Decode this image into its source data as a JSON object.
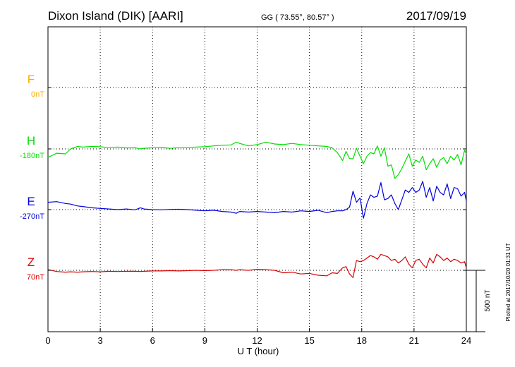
{
  "header": {
    "station": "Dixon Island (DIK)  [AARI]",
    "coords": "GG ( 73.55°,  80.57° )",
    "date": "2017/09/19"
  },
  "side_note": "Plotted at 2017/10/20 01:31  UT",
  "scale_label": "500 nT",
  "chart_data": {
    "type": "line",
    "xlabel": "U T (hour)",
    "xlim": [
      0,
      24
    ],
    "x_ticks": [
      0,
      3,
      6,
      9,
      12,
      15,
      18,
      21,
      24
    ],
    "scale_bar_nT": 500,
    "grid": true,
    "series": [
      {
        "name": "F",
        "baseline_label": "0nT",
        "color": "#ffaa00",
        "x": [],
        "values": []
      },
      {
        "name": "H",
        "baseline_label": "-180nT",
        "color": "#00e000",
        "x": [
          0,
          0.5,
          1.0,
          1.3,
          1.7,
          2.0,
          2.5,
          3.0,
          3.5,
          4.0,
          4.5,
          5.0,
          5.3,
          5.5,
          6.0,
          6.5,
          7.0,
          7.5,
          8.0,
          8.5,
          9.0,
          9.5,
          10.0,
          10.5,
          10.8,
          11.0,
          11.5,
          12.0,
          12.5,
          13.0,
          13.5,
          14.0,
          14.5,
          15.0,
          15.5,
          16.0,
          16.3,
          16.6,
          16.9,
          17.1,
          17.3,
          17.5,
          17.7,
          17.9,
          18.1,
          18.3,
          18.5,
          18.7,
          18.9,
          19.1,
          19.3,
          19.5,
          19.7,
          19.9,
          20.1,
          20.3,
          20.5,
          20.7,
          20.9,
          21.1,
          21.3,
          21.5,
          21.7,
          21.9,
          22.1,
          22.3,
          22.5,
          22.7,
          22.9,
          23.1,
          23.3,
          23.5,
          23.7,
          23.9,
          24.0
        ],
        "values": [
          -70,
          -35,
          -40,
          0,
          20,
          15,
          20,
          18,
          10,
          15,
          8,
          10,
          0,
          5,
          10,
          12,
          5,
          10,
          10,
          15,
          18,
          25,
          30,
          32,
          55,
          45,
          25,
          35,
          55,
          40,
          35,
          45,
          35,
          30,
          25,
          20,
          10,
          -30,
          -95,
          -20,
          -80,
          -80,
          5,
          -60,
          -120,
          -60,
          -30,
          -40,
          25,
          -60,
          10,
          -140,
          -130,
          -240,
          -210,
          -160,
          -100,
          -40,
          -140,
          -90,
          -110,
          -60,
          -170,
          -120,
          -80,
          -150,
          -90,
          -70,
          -120,
          -60,
          -90,
          -45,
          -130,
          -10,
          -40
        ]
      },
      {
        "name": "E",
        "baseline_label": "-270nT",
        "color": "#0000dd",
        "x": [
          0,
          0.5,
          1.0,
          1.3,
          1.7,
          2.0,
          2.5,
          3.0,
          3.5,
          4.0,
          4.5,
          5.0,
          5.3,
          5.5,
          6.0,
          6.5,
          7.0,
          7.5,
          8.0,
          8.5,
          9.0,
          9.5,
          10.0,
          10.5,
          10.8,
          11.0,
          11.5,
          12.0,
          12.5,
          13.0,
          13.5,
          14.0,
          14.5,
          15.0,
          15.5,
          16.0,
          16.3,
          16.6,
          16.9,
          17.1,
          17.3,
          17.5,
          17.7,
          17.9,
          18.1,
          18.3,
          18.5,
          18.7,
          18.9,
          19.1,
          19.3,
          19.5,
          19.7,
          19.9,
          20.1,
          20.3,
          20.5,
          20.7,
          20.9,
          21.1,
          21.3,
          21.5,
          21.7,
          21.9,
          22.1,
          22.3,
          22.5,
          22.7,
          22.9,
          23.1,
          23.3,
          23.5,
          23.7,
          23.9,
          24.0
        ],
        "values": [
          60,
          65,
          50,
          45,
          30,
          25,
          15,
          10,
          5,
          0,
          5,
          -2,
          15,
          5,
          0,
          -2,
          2,
          3,
          0,
          -5,
          -10,
          -5,
          -15,
          -20,
          -30,
          -15,
          -20,
          -15,
          -20,
          -25,
          -15,
          -20,
          -10,
          -15,
          -5,
          -25,
          -15,
          -10,
          -10,
          0,
          20,
          150,
          60,
          95,
          -70,
          50,
          120,
          100,
          110,
          220,
          80,
          90,
          120,
          50,
          0,
          80,
          160,
          140,
          180,
          140,
          160,
          230,
          100,
          180,
          70,
          190,
          140,
          120,
          210,
          90,
          180,
          170,
          110,
          140,
          70
        ]
      },
      {
        "name": "Z",
        "baseline_label": "70nT",
        "color": "#dd0000",
        "x": [
          0,
          0.5,
          1.0,
          1.3,
          1.7,
          2.0,
          2.5,
          3.0,
          3.5,
          4.0,
          4.5,
          5.0,
          5.3,
          5.5,
          6.0,
          6.5,
          7.0,
          7.5,
          8.0,
          8.5,
          9.0,
          9.5,
          10.0,
          10.5,
          10.8,
          11.0,
          11.5,
          12.0,
          12.5,
          13.0,
          13.5,
          14.0,
          14.5,
          15.0,
          15.5,
          16.0,
          16.3,
          16.6,
          16.9,
          17.1,
          17.3,
          17.5,
          17.7,
          17.9,
          18.1,
          18.3,
          18.5,
          18.7,
          18.9,
          19.1,
          19.3,
          19.5,
          19.7,
          19.9,
          20.1,
          20.3,
          20.5,
          20.7,
          20.9,
          21.1,
          21.3,
          21.5,
          21.7,
          21.9,
          22.1,
          22.3,
          22.5,
          22.7,
          22.9,
          23.1,
          23.3,
          23.5,
          23.7,
          23.9,
          24.0
        ],
        "values": [
          5,
          -10,
          -15,
          -12,
          -15,
          -12,
          -10,
          -12,
          -8,
          -10,
          -8,
          -8,
          -10,
          -8,
          -5,
          -5,
          -3,
          -5,
          -3,
          0,
          -3,
          0,
          5,
          5,
          0,
          5,
          0,
          8,
          5,
          0,
          -20,
          -15,
          -30,
          -25,
          -40,
          -45,
          -20,
          -25,
          20,
          30,
          -30,
          -60,
          80,
          70,
          80,
          100,
          120,
          110,
          90,
          130,
          120,
          110,
          80,
          90,
          60,
          80,
          110,
          50,
          20,
          80,
          90,
          50,
          20,
          100,
          60,
          130,
          110,
          80,
          100,
          70,
          90,
          80,
          60,
          70,
          20
        ]
      }
    ]
  }
}
